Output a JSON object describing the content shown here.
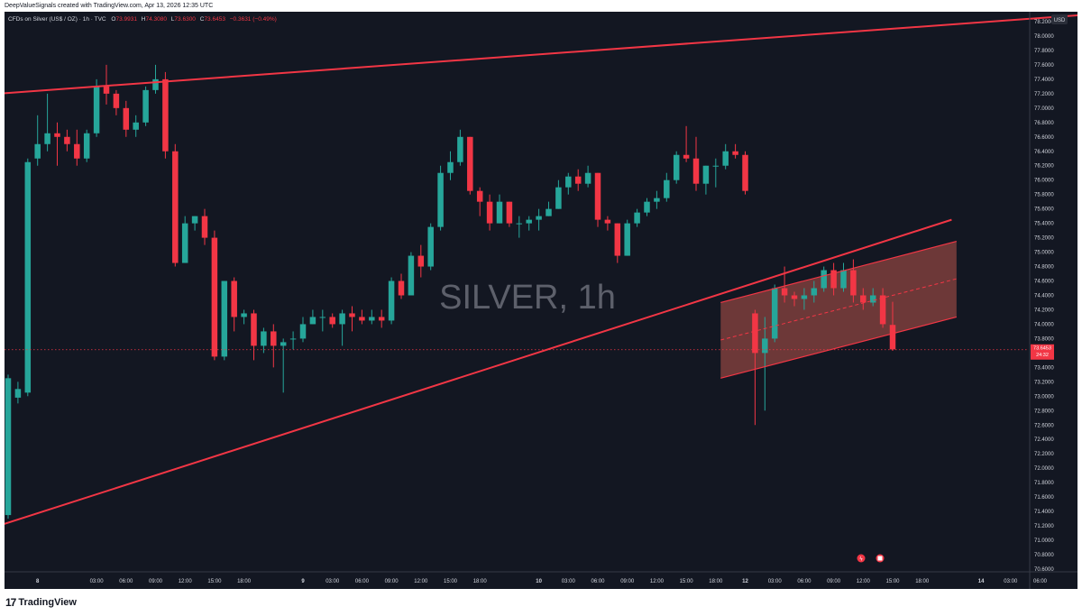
{
  "header": {
    "credit": "DeepValueSignals created with TradingView.com, Apr 13, 2026 12:35 UTC"
  },
  "legend": {
    "symbol": "CFDs on Silver (US$ / OZ) · 1h · TVC",
    "o_label": "O",
    "o_value": "73.9931",
    "h_label": "H",
    "h_value": "74.3080",
    "l_label": "L",
    "l_value": "73.6300",
    "c_label": "C",
    "c_value": "73.6453",
    "change": "−0.3631 (−0.49%)"
  },
  "watermark": "SILVER, 1h",
  "currency": "USD",
  "price_badge": {
    "price": "73.6453",
    "countdown": "24:32"
  },
  "brand": {
    "name": "TradingView",
    "mark": "17"
  },
  "colors": {
    "background": "#131722",
    "up": "#26a69a",
    "down": "#f23645",
    "trendline": "#f23645",
    "channel_fill": "#b8534a",
    "axis_text": "#d1d4dc",
    "watermark": "#5d606b"
  },
  "chart_data": {
    "type": "candlestick",
    "timeframe": "1h",
    "y_axis": {
      "min": 70.6,
      "max": 78.3,
      "ticks": [
        "78.2000",
        "78.0000",
        "77.8000",
        "77.6000",
        "77.4000",
        "77.2000",
        "77.0000",
        "76.8000",
        "76.6000",
        "76.4000",
        "76.2000",
        "76.0000",
        "75.8000",
        "75.6000",
        "75.4000",
        "75.2000",
        "75.0000",
        "74.8000",
        "74.6000",
        "74.4000",
        "74.2000",
        "74.0000",
        "73.8000",
        "73.6000",
        "73.4000",
        "73.2000",
        "73.0000",
        "72.8000",
        "72.6000",
        "72.4000",
        "72.2000",
        "72.0000",
        "71.8000",
        "71.6000",
        "71.4000",
        "71.2000",
        "71.0000",
        "70.8000",
        "70.6000"
      ]
    },
    "x_axis": {
      "ticks": [
        {
          "bar": 3,
          "label": "8"
        },
        {
          "bar": 9,
          "label": "03:00"
        },
        {
          "bar": 12,
          "label": "06:00"
        },
        {
          "bar": 15,
          "label": "09:00"
        },
        {
          "bar": 18,
          "label": "12:00"
        },
        {
          "bar": 21,
          "label": "15:00"
        },
        {
          "bar": 24,
          "label": "18:00"
        },
        {
          "bar": 30,
          "label": "9"
        },
        {
          "bar": 33,
          "label": "03:00"
        },
        {
          "bar": 36,
          "label": "06:00"
        },
        {
          "bar": 39,
          "label": "09:00"
        },
        {
          "bar": 42,
          "label": "12:00"
        },
        {
          "bar": 45,
          "label": "15:00"
        },
        {
          "bar": 48,
          "label": "18:00"
        },
        {
          "bar": 54,
          "label": "10"
        },
        {
          "bar": 57,
          "label": "03:00"
        },
        {
          "bar": 60,
          "label": "06:00"
        },
        {
          "bar": 63,
          "label": "09:00"
        },
        {
          "bar": 66,
          "label": "12:00"
        },
        {
          "bar": 69,
          "label": "15:00"
        },
        {
          "bar": 72,
          "label": "18:00"
        },
        {
          "bar": 75,
          "label": "12"
        },
        {
          "bar": 78,
          "label": "03:00"
        },
        {
          "bar": 81,
          "label": "06:00"
        },
        {
          "bar": 84,
          "label": "09:00"
        },
        {
          "bar": 87,
          "label": "12:00"
        },
        {
          "bar": 90,
          "label": "15:00"
        },
        {
          "bar": 93,
          "label": "18:00"
        },
        {
          "bar": 99,
          "label": "14"
        },
        {
          "bar": 102,
          "label": "03:00"
        },
        {
          "bar": 105,
          "label": "06:00"
        }
      ]
    },
    "candles": [
      [
        71.35,
        73.25,
        71.3,
        73.3
      ],
      [
        72.98,
        73.1,
        72.9,
        73.2
      ],
      [
        73.05,
        76.25,
        73.0,
        76.3
      ],
      [
        76.3,
        76.5,
        76.2,
        76.9
      ],
      [
        76.5,
        76.65,
        76.4,
        77.2
      ],
      [
        76.65,
        76.6,
        76.2,
        76.8
      ],
      [
        76.6,
        76.5,
        76.4,
        76.7
      ],
      [
        76.5,
        76.3,
        76.2,
        76.7
      ],
      [
        76.3,
        76.65,
        76.25,
        76.7
      ],
      [
        76.65,
        77.3,
        76.6,
        77.4
      ],
      [
        77.3,
        77.2,
        77.05,
        77.6
      ],
      [
        77.2,
        77.0,
        76.9,
        77.25
      ],
      [
        77.0,
        76.7,
        76.6,
        77.1
      ],
      [
        76.7,
        76.8,
        76.6,
        76.9
      ],
      [
        76.8,
        77.25,
        76.75,
        77.3
      ],
      [
        77.25,
        77.4,
        77.2,
        77.6
      ],
      [
        77.4,
        76.4,
        76.3,
        77.5
      ],
      [
        76.4,
        74.85,
        74.8,
        76.5
      ],
      [
        74.85,
        75.4,
        74.85,
        75.5
      ],
      [
        75.4,
        75.5,
        75.3,
        75.5
      ],
      [
        75.5,
        75.2,
        75.1,
        75.6
      ],
      [
        75.2,
        73.55,
        73.5,
        75.3
      ],
      [
        73.55,
        74.6,
        73.5,
        74.6
      ],
      [
        74.6,
        74.1,
        73.9,
        74.65
      ],
      [
        74.1,
        74.15,
        74.0,
        74.2
      ],
      [
        74.15,
        73.7,
        73.5,
        74.2
      ],
      [
        73.7,
        73.9,
        73.6,
        73.95
      ],
      [
        73.9,
        73.7,
        73.4,
        74.0
      ],
      [
        73.7,
        73.75,
        73.05,
        73.8
      ],
      [
        73.8,
        73.8,
        73.65,
        73.9
      ],
      [
        73.8,
        74.0,
        73.75,
        74.1
      ],
      [
        74.0,
        74.1,
        74.0,
        74.2
      ],
      [
        74.1,
        74.1,
        73.9,
        74.2
      ],
      [
        74.1,
        74.0,
        73.95,
        74.15
      ],
      [
        74.0,
        74.15,
        73.7,
        74.2
      ],
      [
        74.15,
        74.1,
        73.9,
        74.25
      ],
      [
        74.1,
        74.05,
        74.0,
        74.2
      ],
      [
        74.05,
        74.1,
        74.0,
        74.2
      ],
      [
        74.1,
        74.05,
        73.95,
        74.2
      ],
      [
        74.05,
        74.6,
        74.0,
        74.65
      ],
      [
        74.6,
        74.4,
        74.35,
        74.7
      ],
      [
        74.4,
        74.95,
        74.4,
        75.0
      ],
      [
        74.95,
        74.8,
        74.65,
        75.1
      ],
      [
        74.8,
        75.35,
        74.75,
        75.4
      ],
      [
        75.35,
        76.1,
        75.3,
        76.2
      ],
      [
        76.1,
        76.25,
        76.0,
        76.4
      ],
      [
        76.25,
        76.6,
        76.2,
        76.7
      ],
      [
        76.6,
        75.85,
        75.8,
        76.6
      ],
      [
        75.85,
        75.7,
        75.5,
        75.9
      ],
      [
        75.7,
        75.4,
        75.3,
        75.8
      ],
      [
        75.4,
        75.7,
        75.4,
        75.8
      ],
      [
        75.7,
        75.4,
        75.35,
        75.7
      ],
      [
        75.4,
        75.4,
        75.2,
        75.5
      ],
      [
        75.4,
        75.45,
        75.3,
        75.5
      ],
      [
        75.45,
        75.5,
        75.3,
        75.6
      ],
      [
        75.5,
        75.6,
        75.5,
        75.7
      ],
      [
        75.6,
        75.9,
        75.6,
        76.0
      ],
      [
        75.9,
        76.05,
        75.8,
        76.1
      ],
      [
        76.05,
        75.95,
        75.85,
        76.15
      ],
      [
        75.95,
        76.1,
        75.9,
        76.2
      ],
      [
        76.1,
        75.45,
        75.35,
        76.1
      ],
      [
        75.45,
        75.4,
        75.3,
        75.5
      ],
      [
        75.4,
        74.95,
        74.85,
        75.4
      ],
      [
        74.95,
        75.4,
        74.95,
        75.45
      ],
      [
        75.4,
        75.55,
        75.35,
        75.6
      ],
      [
        75.55,
        75.7,
        75.5,
        75.75
      ],
      [
        75.7,
        75.75,
        75.6,
        75.85
      ],
      [
        75.75,
        76.0,
        75.7,
        76.1
      ],
      [
        76.0,
        76.35,
        75.95,
        76.4
      ],
      [
        76.35,
        76.3,
        76.25,
        76.75
      ],
      [
        76.3,
        75.95,
        75.85,
        76.6
      ],
      [
        75.95,
        76.2,
        75.8,
        76.2
      ],
      [
        76.2,
        76.2,
        75.9,
        76.3
      ],
      [
        76.2,
        76.4,
        76.15,
        76.5
      ],
      [
        76.4,
        76.35,
        76.3,
        76.5
      ],
      [
        76.35,
        75.85,
        75.8,
        76.4
      ],
      [
        74.15,
        73.6,
        72.6,
        74.2
      ],
      [
        73.6,
        73.8,
        72.8,
        74.1
      ],
      [
        73.8,
        74.5,
        73.75,
        74.55
      ],
      [
        74.5,
        74.4,
        74.3,
        74.8
      ],
      [
        74.4,
        74.35,
        74.25,
        74.45
      ],
      [
        74.35,
        74.4,
        74.2,
        74.5
      ],
      [
        74.4,
        74.5,
        74.3,
        74.6
      ],
      [
        74.5,
        74.75,
        74.45,
        74.8
      ],
      [
        74.75,
        74.5,
        74.4,
        74.85
      ],
      [
        74.5,
        74.75,
        74.45,
        74.85
      ],
      [
        74.75,
        74.4,
        74.3,
        74.9
      ],
      [
        74.4,
        74.3,
        74.2,
        74.5
      ],
      [
        74.3,
        74.4,
        74.25,
        74.5
      ],
      [
        74.4,
        74.0,
        73.95,
        74.5
      ],
      [
        73.99,
        73.65,
        73.63,
        74.31
      ]
    ],
    "drawings": [
      {
        "kind": "trendline",
        "from": [
          -1,
          77.2
        ],
        "to": [
          110,
          78.3
        ]
      },
      {
        "kind": "trendline",
        "from": [
          -1,
          71.2
        ],
        "to": [
          96,
          75.45
        ]
      },
      {
        "kind": "parallel_channel",
        "start_bar": 72.5,
        "end_bar": 96.5,
        "upper_from": 74.3,
        "upper_to": 75.15,
        "lower_from": 73.25,
        "lower_to": 74.1,
        "mid_from": 73.78,
        "mid_to": 74.63
      }
    ],
    "last_price": 73.6453
  }
}
